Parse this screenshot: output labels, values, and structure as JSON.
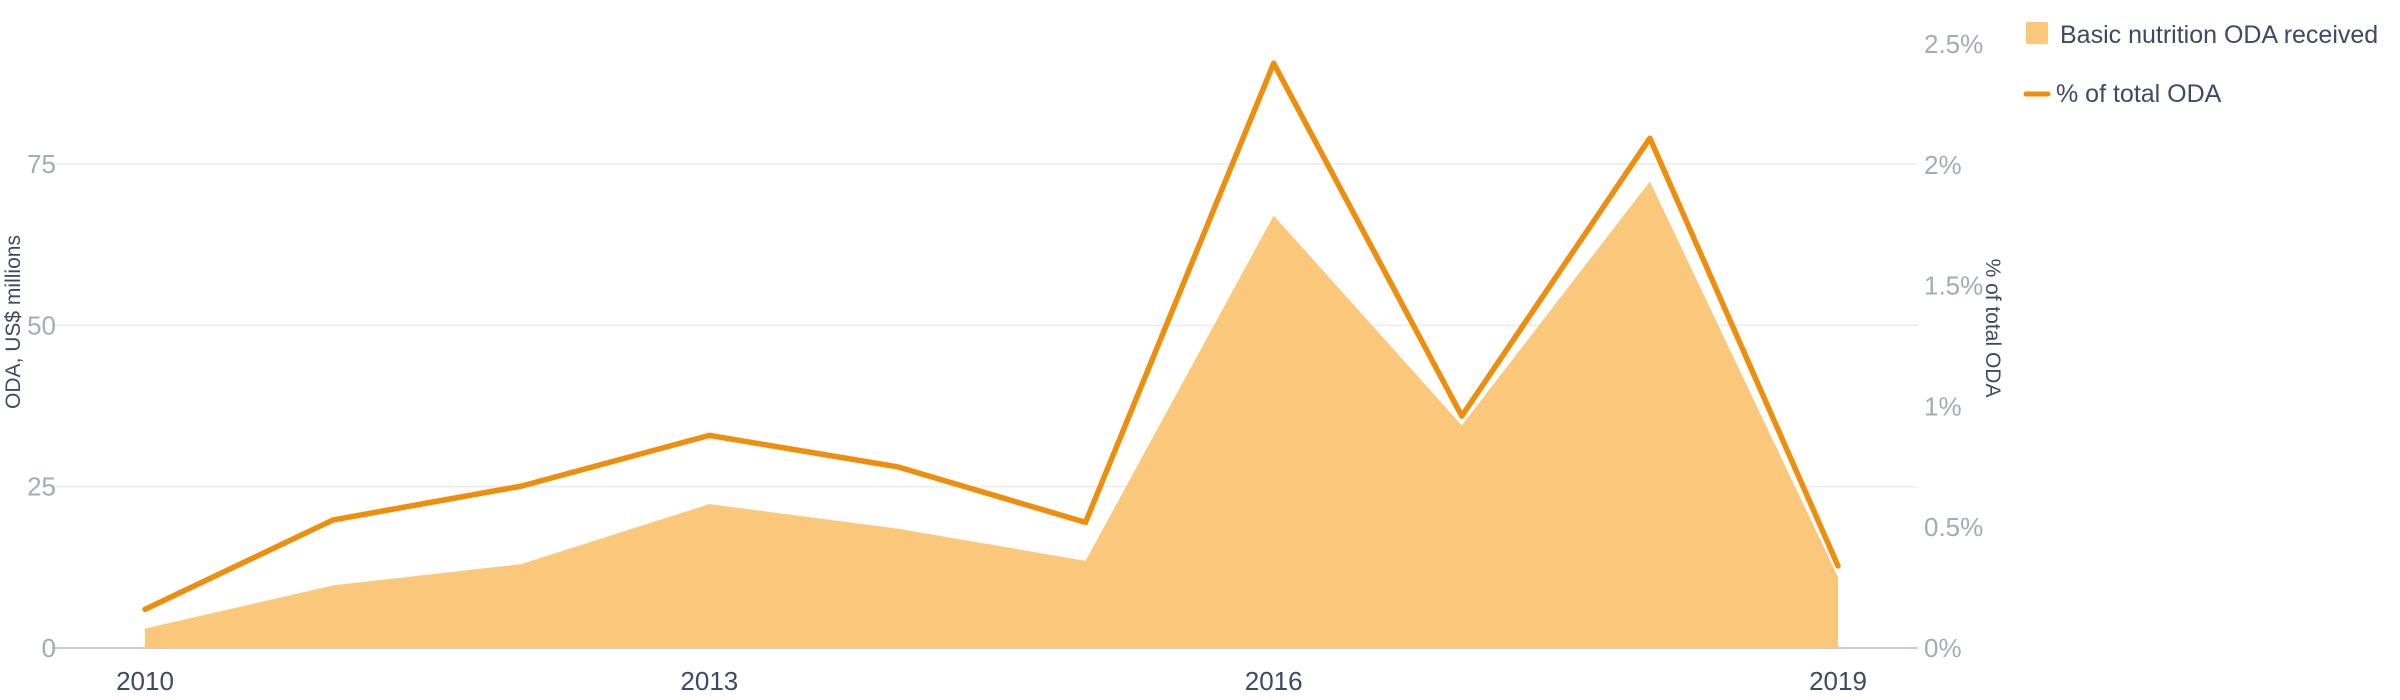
{
  "chart_data": {
    "type": "area+line",
    "x": [
      2010,
      2011,
      2012,
      2013,
      2014,
      2015,
      2016,
      2017,
      2018,
      2019
    ],
    "x_tick_labels": [
      "2010",
      "2013",
      "2016",
      "2019"
    ],
    "series": [
      {
        "name": "Basic nutrition ODA received",
        "type": "area",
        "axis": "left",
        "color": "#fbc87b",
        "values": [
          3,
          9.7,
          13,
          22.3,
          18.5,
          13.5,
          67,
          34.5,
          72.3,
          11
        ]
      },
      {
        "name": "% of total ODA",
        "type": "line",
        "axis": "right",
        "color": "#ef8e0c",
        "values": [
          0.16,
          0.53,
          0.67,
          0.88,
          0.75,
          0.52,
          2.42,
          0.96,
          2.11,
          0.34
        ]
      }
    ],
    "y_left": {
      "label": "ODA, US$ millions",
      "range": [
        0,
        93.6
      ],
      "ticks": [
        0,
        25,
        50,
        75
      ],
      "tick_labels": [
        "0",
        "25",
        "50",
        "75"
      ]
    },
    "y_right": {
      "label": "% of total ODA",
      "range": [
        0,
        2.5
      ],
      "ticks": [
        0,
        0.5,
        1,
        1.5,
        2,
        2.5
      ],
      "tick_labels": [
        "0%",
        "0.5%",
        "1%",
        "1.5%",
        "2%",
        "2.5%"
      ]
    },
    "grid": true,
    "legend_position": "top-right",
    "title": ""
  }
}
